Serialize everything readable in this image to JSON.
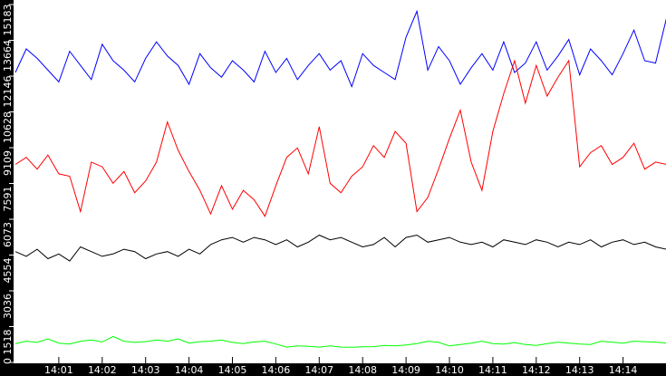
{
  "chart_data": {
    "type": "line",
    "title": "",
    "xlabel": "",
    "ylabel": "",
    "grid": false,
    "legend": "none",
    "x_tick_labels": [
      "14:01",
      "14:02",
      "14:03",
      "14:04",
      "14:05",
      "14:06",
      "14:07",
      "14:08",
      "14:09",
      "14:10",
      "14:11",
      "14:12",
      "14:13",
      "14:14"
    ],
    "y_tick_labels": [
      "0",
      "1518",
      "3036",
      "4554",
      "6073",
      "7591",
      "9109",
      "10628",
      "12146",
      "13664",
      "15183"
    ],
    "ylim": [
      0,
      15183
    ],
    "xlim": [
      "14:00:00",
      "14:15:00"
    ],
    "x": [
      "14:00:00",
      "14:00:15",
      "14:00:30",
      "14:00:45",
      "14:01:00",
      "14:01:15",
      "14:01:30",
      "14:01:45",
      "14:02:00",
      "14:02:15",
      "14:02:30",
      "14:02:45",
      "14:03:00",
      "14:03:15",
      "14:03:30",
      "14:03:45",
      "14:04:00",
      "14:04:15",
      "14:04:30",
      "14:04:45",
      "14:05:00",
      "14:05:15",
      "14:05:30",
      "14:05:45",
      "14:06:00",
      "14:06:15",
      "14:06:30",
      "14:06:45",
      "14:07:00",
      "14:07:15",
      "14:07:30",
      "14:07:45",
      "14:08:00",
      "14:08:15",
      "14:08:30",
      "14:08:45",
      "14:09:00",
      "14:09:15",
      "14:09:30",
      "14:09:45",
      "14:10:00",
      "14:10:15",
      "14:10:30",
      "14:10:45",
      "14:11:00",
      "14:11:15",
      "14:11:30",
      "14:11:45",
      "14:12:00",
      "14:12:15",
      "14:12:30",
      "14:12:45",
      "14:13:00",
      "14:13:15",
      "14:13:30",
      "14:13:45",
      "14:14:00",
      "14:14:15",
      "14:14:30",
      "14:14:45",
      "14:15:00"
    ],
    "series": [
      {
        "color": "#0000ff",
        "values": [
          12300,
          13300,
          12900,
          12400,
          11900,
          13200,
          12600,
          12000,
          13500,
          12800,
          12400,
          11900,
          12900,
          13600,
          13000,
          12600,
          11800,
          13100,
          12500,
          12100,
          12800,
          12400,
          11900,
          13200,
          12300,
          12900,
          12000,
          12600,
          13100,
          12400,
          12800,
          11700,
          13100,
          12600,
          12300,
          12000,
          13800,
          14900,
          12400,
          13400,
          12800,
          11800,
          12500,
          13100,
          12400,
          13600,
          12300,
          12700,
          13600,
          12400,
          13000,
          13700,
          12200,
          13300,
          12800,
          12200,
          13100,
          14100,
          12800,
          12700,
          14600
        ]
      },
      {
        "color": "#ff0000",
        "values": [
          8400,
          8700,
          8200,
          8800,
          8000,
          7900,
          6400,
          8500,
          8300,
          7600,
          8100,
          7200,
          7700,
          8500,
          10200,
          9000,
          8100,
          7300,
          6300,
          7500,
          6500,
          7300,
          6900,
          6200,
          7500,
          8700,
          9100,
          8000,
          10000,
          7600,
          7200,
          7900,
          8300,
          9200,
          8700,
          9800,
          9300,
          6400,
          7000,
          8200,
          9500,
          10700,
          8500,
          7300,
          9800,
          11400,
          12800,
          11000,
          12600,
          11300,
          12100,
          12800,
          8300,
          8900,
          9200,
          8400,
          8700,
          9300,
          8200,
          8500,
          8400
        ]
      },
      {
        "color": "#000000",
        "values": [
          4700,
          4500,
          4800,
          4400,
          4600,
          4300,
          4900,
          4700,
          4500,
          4600,
          4800,
          4700,
          4400,
          4600,
          4700,
          4500,
          4800,
          4600,
          5000,
          5200,
          5300,
          5100,
          5300,
          5200,
          5000,
          5200,
          4900,
          5100,
          5400,
          5200,
          5300,
          5100,
          4900,
          5000,
          5300,
          4900,
          5300,
          5400,
          5100,
          5200,
          5300,
          5100,
          5000,
          5100,
          4900,
          5200,
          5100,
          5000,
          5200,
          5100,
          4900,
          5100,
          5000,
          5200,
          4900,
          5100,
          5200,
          5000,
          5100,
          4900,
          4800
        ]
      },
      {
        "color": "#00ff00",
        "values": [
          800,
          900,
          850,
          1000,
          820,
          780,
          900,
          950,
          870,
          1100,
          900,
          850,
          880,
          950,
          900,
          1000,
          820,
          880,
          900,
          950,
          850,
          800,
          870,
          900,
          780,
          650,
          700,
          680,
          650,
          700,
          650,
          640,
          660,
          670,
          720,
          700,
          740,
          800,
          900,
          850,
          700,
          760,
          820,
          900,
          800,
          780,
          840,
          760,
          720,
          800,
          860,
          820,
          780,
          760,
          900,
          860,
          820,
          900,
          880,
          860,
          820
        ]
      }
    ]
  }
}
